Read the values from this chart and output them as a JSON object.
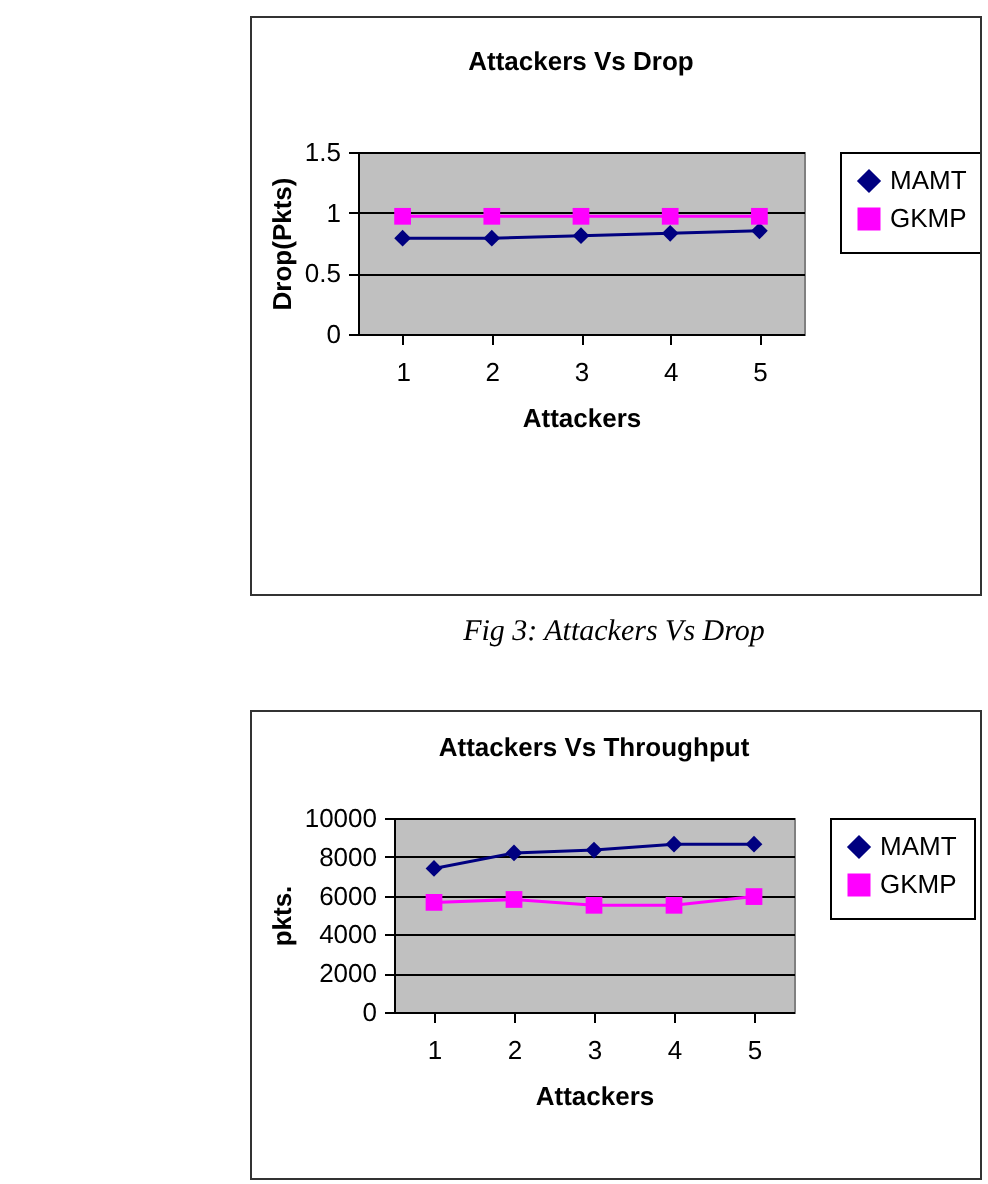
{
  "chart_data": [
    {
      "type": "line",
      "title": "Attackers Vs Drop",
      "xlabel": "Attackers",
      "ylabel": "Drop(Pkts)",
      "categories": [
        "1",
        "2",
        "3",
        "4",
        "5"
      ],
      "ylim": [
        0,
        1.5
      ],
      "yticks": [
        0,
        0.5,
        1,
        1.5
      ],
      "grid": "y",
      "legend": "right",
      "annotations": [
        "Fig 3: Attackers Vs Drop"
      ],
      "series": [
        {
          "name": "MAMT",
          "color": "#000080",
          "marker": "diamond",
          "values": [
            0.79,
            0.79,
            0.81,
            0.83,
            0.85
          ]
        },
        {
          "name": "GKMP",
          "color": "#ff00ff",
          "marker": "square",
          "values": [
            0.97,
            0.97,
            0.97,
            0.97,
            0.97
          ]
        }
      ]
    },
    {
      "type": "line",
      "title": "Attackers Vs Throughput",
      "xlabel": "Attackers",
      "ylabel": "pkts.",
      "categories": [
        "1",
        "2",
        "3",
        "4",
        "5"
      ],
      "ylim": [
        0,
        10000
      ],
      "yticks": [
        0,
        2000,
        4000,
        6000,
        8000,
        10000
      ],
      "grid": "y",
      "legend": "right",
      "series": [
        {
          "name": "MAMT",
          "color": "#000080",
          "marker": "diamond",
          "values": [
            7400,
            8200,
            8350,
            8650,
            8650
          ]
        },
        {
          "name": "GKMP",
          "color": "#ff00ff",
          "marker": "square",
          "values": [
            5650,
            5800,
            5500,
            5500,
            5950
          ]
        }
      ]
    }
  ]
}
